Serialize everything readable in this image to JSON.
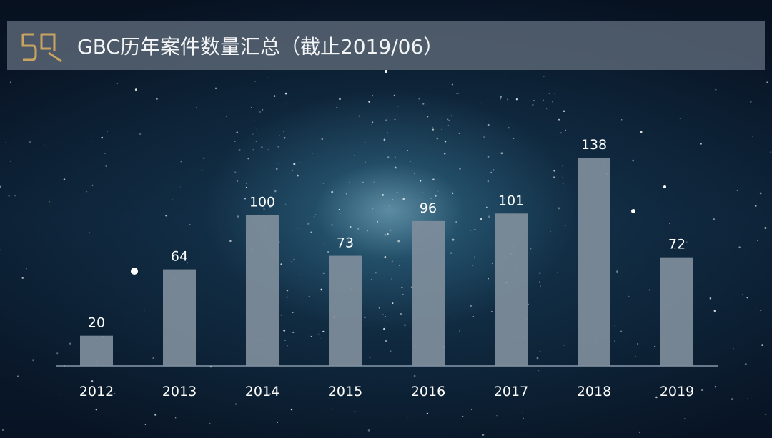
{
  "header": {
    "title": "GBC历年案件数量汇总（截止2019/06）",
    "logo_text": "5Q",
    "accent_color": "#c8a460"
  },
  "chart_data": {
    "type": "bar",
    "title": "GBC历年案件数量汇总（截止2019/06）",
    "categories": [
      "2012",
      "2013",
      "2014",
      "2015",
      "2016",
      "2017",
      "2018",
      "2019"
    ],
    "values": [
      20,
      64,
      100,
      73,
      96,
      101,
      138,
      72
    ],
    "xlabel": "",
    "ylabel": "",
    "ylim": [
      0,
      140
    ],
    "grid": false,
    "bar_color": "#7f8e9c",
    "axis_color": "#9fb1c2"
  }
}
